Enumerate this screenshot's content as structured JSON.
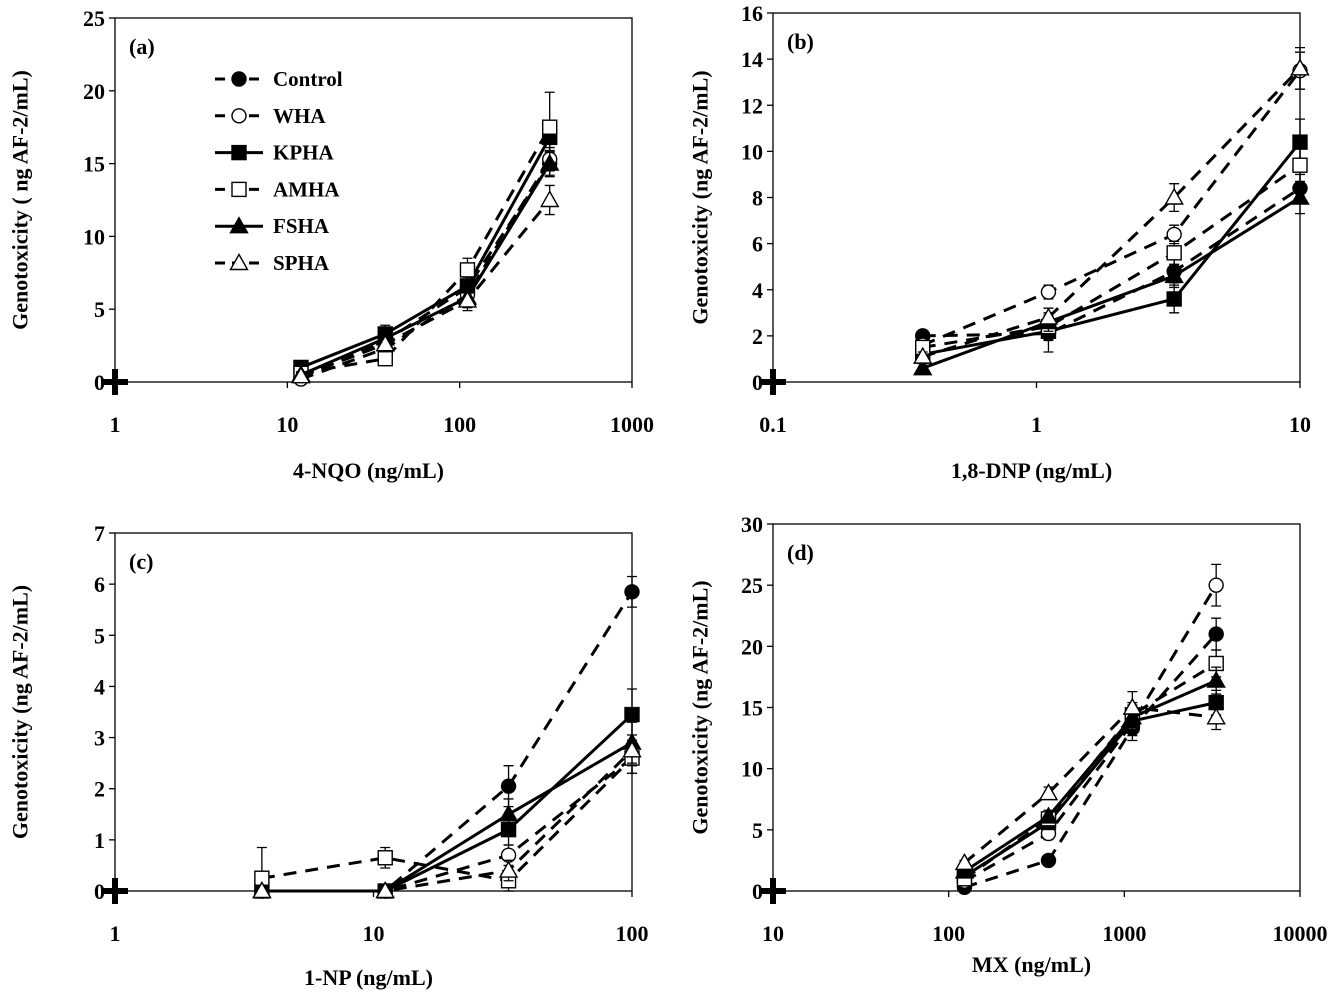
{
  "chart_data": [
    {
      "type": "line",
      "panel_label": "(a)",
      "xlabel": "4-NQO (ng/mL)",
      "ylabel": "Genotoxicity ( ng AF-2/mL)",
      "xscale": "log",
      "xlim": [
        1,
        1000
      ],
      "ylim": [
        0,
        25
      ],
      "xticks": [
        "1",
        "10",
        "100",
        "1000"
      ],
      "yticks": [
        "0",
        "5",
        "10",
        "15",
        "20",
        "25"
      ],
      "x": [
        12,
        37,
        111,
        333
      ],
      "legend_position": "top-left",
      "series": [
        {
          "name": "Control",
          "values": [
            0.3,
            2.8,
            6.5,
            15.0
          ],
          "errors": [
            0.2,
            0.5,
            0.7,
            0.8
          ],
          "line": "dashed",
          "marker": "filled-circle"
        },
        {
          "name": "WHA",
          "values": [
            0.2,
            2.3,
            6.0,
            15.3
          ],
          "errors": [
            0.2,
            0.4,
            0.6,
            0.8
          ],
          "line": "dashed",
          "marker": "open-circle"
        },
        {
          "name": "KPHA",
          "values": [
            1.0,
            3.3,
            6.6,
            16.8
          ],
          "errors": [
            0.3,
            0.6,
            0.8,
            1.0
          ],
          "line": "solid",
          "marker": "filled-square"
        },
        {
          "name": "AMHA",
          "values": [
            0.6,
            1.6,
            7.7,
            17.5
          ],
          "errors": [
            0.3,
            0.4,
            0.8,
            2.4
          ],
          "line": "dashed",
          "marker": "open-square"
        },
        {
          "name": "FSHA",
          "values": [
            0.5,
            3.0,
            5.8,
            15.0
          ],
          "errors": [
            0.2,
            0.5,
            0.7,
            0.9
          ],
          "line": "solid",
          "marker": "filled-triangle"
        },
        {
          "name": "SPHA",
          "values": [
            0.4,
            2.6,
            5.6,
            12.5
          ],
          "errors": [
            0.2,
            0.5,
            0.7,
            1.0
          ],
          "line": "dashed",
          "marker": "open-triangle"
        }
      ]
    },
    {
      "type": "line",
      "panel_label": "(b)",
      "xlabel": "1,8-DNP (ng/mL)",
      "ylabel": "Genotoxicity (ng AF-2/mL)",
      "xscale": "log",
      "xlim": [
        0.1,
        10
      ],
      "ylim": [
        0,
        16
      ],
      "xticks": [
        "0.1",
        "1",
        "10"
      ],
      "yticks": [
        "0",
        "2",
        "4",
        "6",
        "8",
        "10",
        "12",
        "14",
        "16"
      ],
      "x": [
        0.37,
        1.11,
        3.33,
        10
      ],
      "series": [
        {
          "name": "Control",
          "values": [
            2.0,
            2.1,
            4.8,
            8.4
          ],
          "errors": [
            0.2,
            0.8,
            0.5,
            0.6
          ],
          "line": "dashed",
          "marker": "filled-circle"
        },
        {
          "name": "WHA",
          "values": [
            1.6,
            3.9,
            6.4,
            13.5
          ],
          "errors": [
            0.2,
            0.3,
            0.4,
            0.8
          ],
          "line": "dashed",
          "marker": "open-circle"
        },
        {
          "name": "KPHA",
          "values": [
            1.2,
            2.2,
            3.6,
            10.4
          ],
          "errors": [
            0.2,
            0.4,
            0.6,
            1.0
          ],
          "line": "solid",
          "marker": "filled-square"
        },
        {
          "name": "AMHA",
          "values": [
            1.5,
            2.4,
            5.6,
            9.4
          ],
          "errors": [
            0.2,
            0.4,
            0.5,
            0.8
          ],
          "line": "dashed",
          "marker": "open-square"
        },
        {
          "name": "FSHA",
          "values": [
            0.6,
            2.6,
            4.6,
            8.0
          ],
          "errors": [
            0.2,
            0.4,
            0.5,
            0.7
          ],
          "line": "solid",
          "marker": "filled-triangle"
        },
        {
          "name": "SPHA",
          "values": [
            1.1,
            2.8,
            8.0,
            13.6
          ],
          "errors": [
            0.2,
            0.4,
            0.6,
            0.9
          ],
          "line": "dashed",
          "marker": "open-triangle"
        }
      ]
    },
    {
      "type": "line",
      "panel_label": "(c)",
      "xlabel": "1-NP (ng/mL)",
      "ylabel": "Genotoxicity (ng AF-2/mL)",
      "xscale": "log",
      "xlim": [
        1,
        100
      ],
      "ylim": [
        0,
        7
      ],
      "xticks": [
        "1",
        "10",
        "100"
      ],
      "yticks": [
        "0",
        "1",
        "2",
        "3",
        "4",
        "5",
        "6",
        "7"
      ],
      "x": [
        3.7,
        11.1,
        33.3,
        100
      ],
      "series": [
        {
          "name": "Control",
          "values": [
            0,
            0,
            2.05,
            5.85
          ],
          "errors": [
            0,
            0,
            0.4,
            0.3
          ],
          "line": "dashed",
          "marker": "filled-circle"
        },
        {
          "name": "WHA",
          "values": [
            0,
            0,
            0.7,
            2.6
          ],
          "errors": [
            0,
            0,
            0.2,
            0.3
          ],
          "line": "dashed",
          "marker": "open-circle"
        },
        {
          "name": "KPHA",
          "values": [
            0,
            0,
            1.2,
            3.45
          ],
          "errors": [
            0,
            0,
            0.3,
            0.5
          ],
          "line": "solid",
          "marker": "filled-square"
        },
        {
          "name": "AMHA",
          "values": [
            0.25,
            0.65,
            0.2,
            2.6
          ],
          "errors": [
            0.6,
            0.2,
            0.2,
            0.3
          ],
          "line": "dashed",
          "marker": "open-square"
        },
        {
          "name": "FSHA",
          "values": [
            0,
            0,
            1.5,
            2.9
          ],
          "errors": [
            0,
            0,
            0.3,
            0.4
          ],
          "line": "solid",
          "marker": "filled-triangle"
        },
        {
          "name": "SPHA",
          "values": [
            0,
            0,
            0.4,
            2.75
          ],
          "errors": [
            0,
            0,
            0.2,
            0.3
          ],
          "line": "dashed",
          "marker": "open-triangle"
        }
      ]
    },
    {
      "type": "line",
      "panel_label": "(d)",
      "xlabel": "MX (ng/mL)",
      "ylabel": "Genotoxicity (ng AF-2/mL)",
      "xscale": "log",
      "xlim": [
        10,
        10000
      ],
      "ylim": [
        0,
        30
      ],
      "xticks": [
        "10",
        "100",
        "1000",
        "10000"
      ],
      "yticks": [
        "0",
        "5",
        "10",
        "15",
        "20",
        "25",
        "30"
      ],
      "x": [
        123,
        370,
        1111,
        3333
      ],
      "series": [
        {
          "name": "Control",
          "values": [
            0.3,
            2.5,
            13.3,
            21.0
          ],
          "errors": [
            0.2,
            0.3,
            1.0,
            1.3
          ],
          "line": "dashed",
          "marker": "filled-circle"
        },
        {
          "name": "WHA",
          "values": [
            0.8,
            4.7,
            13.7,
            25.0
          ],
          "errors": [
            0.2,
            0.5,
            1.0,
            1.7
          ],
          "line": "dashed",
          "marker": "open-circle"
        },
        {
          "name": "KPHA",
          "values": [
            1.2,
            5.6,
            13.9,
            15.4
          ],
          "errors": [
            0.2,
            0.5,
            1.0,
            1.0
          ],
          "line": "solid",
          "marker": "filled-square"
        },
        {
          "name": "AMHA",
          "values": [
            1.0,
            5.9,
            14.4,
            18.6
          ],
          "errors": [
            0.2,
            0.5,
            1.0,
            1.1
          ],
          "line": "dashed",
          "marker": "open-square"
        },
        {
          "name": "FSHA",
          "values": [
            1.6,
            6.1,
            14.2,
            17.2
          ],
          "errors": [
            0.2,
            0.5,
            1.0,
            1.1
          ],
          "line": "solid",
          "marker": "filled-triangle"
        },
        {
          "name": "SPHA",
          "values": [
            2.3,
            8.0,
            15.0,
            14.2
          ],
          "errors": [
            0.2,
            0.5,
            1.3,
            1.0
          ],
          "line": "dashed",
          "marker": "open-triangle"
        }
      ]
    }
  ]
}
